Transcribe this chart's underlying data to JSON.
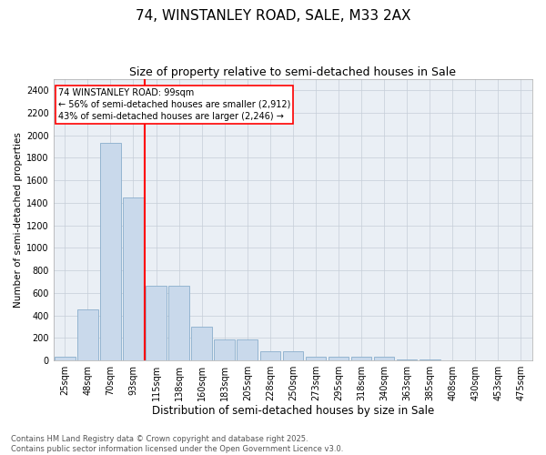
{
  "title": "74, WINSTANLEY ROAD, SALE, M33 2AX",
  "subtitle": "Size of property relative to semi-detached houses in Sale",
  "xlabel": "Distribution of semi-detached houses by size in Sale",
  "ylabel": "Number of semi-detached properties",
  "categories": [
    "25sqm",
    "48sqm",
    "70sqm",
    "93sqm",
    "115sqm",
    "138sqm",
    "160sqm",
    "183sqm",
    "205sqm",
    "228sqm",
    "250sqm",
    "273sqm",
    "295sqm",
    "318sqm",
    "340sqm",
    "363sqm",
    "385sqm",
    "408sqm",
    "430sqm",
    "453sqm",
    "475sqm"
  ],
  "values": [
    30,
    450,
    1930,
    1450,
    660,
    660,
    300,
    185,
    185,
    80,
    80,
    35,
    35,
    30,
    30,
    5,
    5,
    3,
    3,
    0,
    0
  ],
  "bar_color": "#c9d9eb",
  "bar_edge_color": "#8aaecc",
  "vline_x_index": 3.5,
  "vline_color": "red",
  "annotation_text": "74 WINSTANLEY ROAD: 99sqm\n← 56% of semi-detached houses are smaller (2,912)\n43% of semi-detached houses are larger (2,246) →",
  "ylim": [
    0,
    2500
  ],
  "yticks": [
    0,
    200,
    400,
    600,
    800,
    1000,
    1200,
    1400,
    1600,
    1800,
    2000,
    2200,
    2400
  ],
  "grid_color": "#c5cdd8",
  "background_color": "#eaeff5",
  "footer": "Contains HM Land Registry data © Crown copyright and database right 2025.\nContains public sector information licensed under the Open Government Licence v3.0.",
  "title_fontsize": 11,
  "subtitle_fontsize": 9,
  "xlabel_fontsize": 8.5,
  "ylabel_fontsize": 7.5,
  "tick_fontsize": 7,
  "annotation_fontsize": 7,
  "footer_fontsize": 6
}
